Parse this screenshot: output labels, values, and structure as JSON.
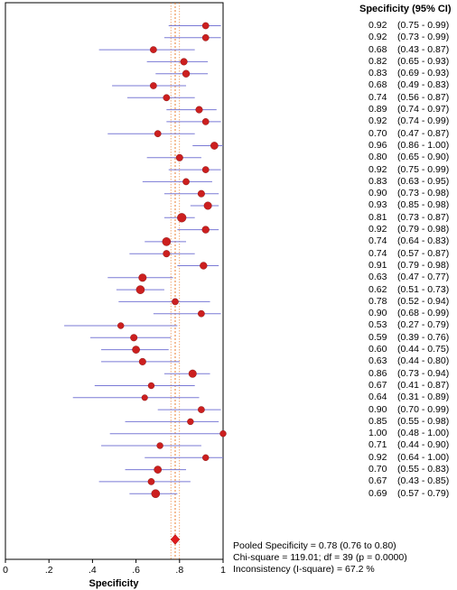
{
  "chart_data": {
    "type": "forest",
    "title": "",
    "xlabel": "Specificity",
    "column_header": "Specificity (95% CI)",
    "x_ticks": [
      "0",
      ".2",
      ".4",
      ".6",
      ".8",
      "1"
    ],
    "xlim": [
      0,
      1
    ],
    "pooled_line": 0.78,
    "colors": {
      "point": "#cc1f1f",
      "ci_line": "#7a7ad6",
      "pooled": "#e01b1b",
      "pooled_line": "#e8701a",
      "axis": "#000000"
    },
    "studies": [
      {
        "est": 0.92,
        "lo": 0.75,
        "hi": 0.99,
        "weight": 0.45,
        "label": "0.92",
        "ci": "(0.75 - 0.99)"
      },
      {
        "est": 0.92,
        "lo": 0.73,
        "hi": 0.99,
        "weight": 0.45,
        "label": "0.92",
        "ci": "(0.73 - 0.99)"
      },
      {
        "est": 0.68,
        "lo": 0.43,
        "hi": 0.87,
        "weight": 0.45,
        "label": "0.68",
        "ci": "(0.43 - 0.87)"
      },
      {
        "est": 0.82,
        "lo": 0.65,
        "hi": 0.93,
        "weight": 0.5,
        "label": "0.82",
        "ci": "(0.65 - 0.93)"
      },
      {
        "est": 0.83,
        "lo": 0.69,
        "hi": 0.93,
        "weight": 0.55,
        "label": "0.83",
        "ci": "(0.69 - 0.93)"
      },
      {
        "est": 0.68,
        "lo": 0.49,
        "hi": 0.83,
        "weight": 0.45,
        "label": "0.68",
        "ci": "(0.49 - 0.83)"
      },
      {
        "est": 0.74,
        "lo": 0.56,
        "hi": 0.87,
        "weight": 0.45,
        "label": "0.74",
        "ci": "(0.56 - 0.87)"
      },
      {
        "est": 0.89,
        "lo": 0.74,
        "hi": 0.97,
        "weight": 0.5,
        "label": "0.89",
        "ci": "(0.74 - 0.97)"
      },
      {
        "est": 0.92,
        "lo": 0.74,
        "hi": 0.99,
        "weight": 0.45,
        "label": "0.92",
        "ci": "(0.74 - 0.99)"
      },
      {
        "est": 0.7,
        "lo": 0.47,
        "hi": 0.87,
        "weight": 0.45,
        "label": "0.70",
        "ci": "(0.47 - 0.87)"
      },
      {
        "est": 0.96,
        "lo": 0.86,
        "hi": 1.0,
        "weight": 0.6,
        "label": "0.96",
        "ci": "(0.86 - 1.00)"
      },
      {
        "est": 0.8,
        "lo": 0.65,
        "hi": 0.9,
        "weight": 0.5,
        "label": "0.80",
        "ci": "(0.65 - 0.90)"
      },
      {
        "est": 0.92,
        "lo": 0.75,
        "hi": 0.99,
        "weight": 0.45,
        "label": "0.92",
        "ci": "(0.75 - 0.99)"
      },
      {
        "est": 0.83,
        "lo": 0.63,
        "hi": 0.95,
        "weight": 0.45,
        "label": "0.83",
        "ci": "(0.63 - 0.95)"
      },
      {
        "est": 0.9,
        "lo": 0.73,
        "hi": 0.98,
        "weight": 0.5,
        "label": "0.90",
        "ci": "(0.73 - 0.98)"
      },
      {
        "est": 0.93,
        "lo": 0.85,
        "hi": 0.98,
        "weight": 0.65,
        "label": "0.93",
        "ci": "(0.85 - 0.98)"
      },
      {
        "est": 0.81,
        "lo": 0.73,
        "hi": 0.87,
        "weight": 0.85,
        "label": "0.81",
        "ci": "(0.73 - 0.87)"
      },
      {
        "est": 0.92,
        "lo": 0.79,
        "hi": 0.98,
        "weight": 0.55,
        "label": "0.92",
        "ci": "(0.79 - 0.98)"
      },
      {
        "est": 0.74,
        "lo": 0.64,
        "hi": 0.83,
        "weight": 0.75,
        "label": "0.74",
        "ci": "(0.64 - 0.83)"
      },
      {
        "est": 0.74,
        "lo": 0.57,
        "hi": 0.87,
        "weight": 0.5,
        "label": "0.74",
        "ci": "(0.57 - 0.87)"
      },
      {
        "est": 0.91,
        "lo": 0.79,
        "hi": 0.98,
        "weight": 0.55,
        "label": "0.91",
        "ci": "(0.79 - 0.98)"
      },
      {
        "est": 0.63,
        "lo": 0.47,
        "hi": 0.77,
        "weight": 0.65,
        "label": "0.63",
        "ci": "(0.47 - 0.77)"
      },
      {
        "est": 0.62,
        "lo": 0.51,
        "hi": 0.73,
        "weight": 0.75,
        "label": "0.62",
        "ci": "(0.51 - 0.73)"
      },
      {
        "est": 0.78,
        "lo": 0.52,
        "hi": 0.94,
        "weight": 0.45,
        "label": "0.78",
        "ci": "(0.52 - 0.94)"
      },
      {
        "est": 0.9,
        "lo": 0.68,
        "hi": 0.99,
        "weight": 0.45,
        "label": "0.90",
        "ci": "(0.68 - 0.99)"
      },
      {
        "est": 0.53,
        "lo": 0.27,
        "hi": 0.79,
        "weight": 0.4,
        "label": "0.53",
        "ci": "(0.27 - 0.79)"
      },
      {
        "est": 0.59,
        "lo": 0.39,
        "hi": 0.76,
        "weight": 0.5,
        "label": "0.59",
        "ci": "(0.39 - 0.76)"
      },
      {
        "est": 0.6,
        "lo": 0.44,
        "hi": 0.75,
        "weight": 0.6,
        "label": "0.60",
        "ci": "(0.44 - 0.75)"
      },
      {
        "est": 0.63,
        "lo": 0.44,
        "hi": 0.8,
        "weight": 0.5,
        "label": "0.63",
        "ci": "(0.44 - 0.80)"
      },
      {
        "est": 0.86,
        "lo": 0.73,
        "hi": 0.94,
        "weight": 0.65,
        "label": "0.86",
        "ci": "(0.73 - 0.94)"
      },
      {
        "est": 0.67,
        "lo": 0.41,
        "hi": 0.87,
        "weight": 0.4,
        "label": "0.67",
        "ci": "(0.41 - 0.87)"
      },
      {
        "est": 0.64,
        "lo": 0.31,
        "hi": 0.89,
        "weight": 0.35,
        "label": "0.64",
        "ci": "(0.31 - 0.89)"
      },
      {
        "est": 0.9,
        "lo": 0.7,
        "hi": 0.99,
        "weight": 0.45,
        "label": "0.90",
        "ci": "(0.70 - 0.99)"
      },
      {
        "est": 0.85,
        "lo": 0.55,
        "hi": 0.98,
        "weight": 0.4,
        "label": "0.85",
        "ci": "(0.55 - 0.98)"
      },
      {
        "est": 1.0,
        "lo": 0.48,
        "hi": 1.0,
        "weight": 0.4,
        "label": "1.00",
        "ci": "(0.48 - 1.00)"
      },
      {
        "est": 0.71,
        "lo": 0.44,
        "hi": 0.9,
        "weight": 0.4,
        "label": "0.71",
        "ci": "(0.44 - 0.90)"
      },
      {
        "est": 0.92,
        "lo": 0.64,
        "hi": 1.0,
        "weight": 0.4,
        "label": "0.92",
        "ci": "(0.64 - 1.00)"
      },
      {
        "est": 0.7,
        "lo": 0.55,
        "hi": 0.83,
        "weight": 0.6,
        "label": "0.70",
        "ci": "(0.55 - 0.83)"
      },
      {
        "est": 0.67,
        "lo": 0.43,
        "hi": 0.85,
        "weight": 0.45,
        "label": "0.67",
        "ci": "(0.43 - 0.85)"
      },
      {
        "est": 0.69,
        "lo": 0.57,
        "hi": 0.79,
        "weight": 0.75,
        "label": "0.69",
        "ci": "(0.57 - 0.79)"
      }
    ],
    "pooled": {
      "est": 0.78,
      "lo": 0.76,
      "hi": 0.8,
      "text": "Pooled Specificity = 0.78 (0.76 to 0.80)"
    },
    "heterogeneity": {
      "chi_square": "Chi-square = 119.01; df =  39 (p = 0.0000)",
      "inconsistency": "Inconsistency (I-square) = 67.2 %"
    }
  }
}
